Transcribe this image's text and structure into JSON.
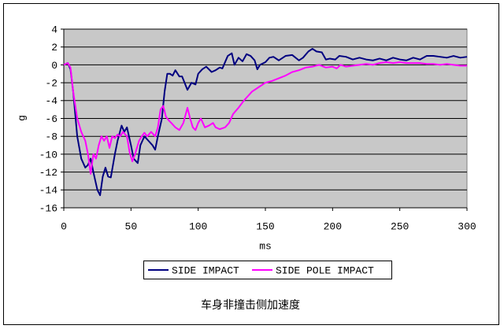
{
  "chart_data": {
    "type": "line",
    "title": "车身非撞击侧加速度",
    "x_label": "ms",
    "y_label": "g",
    "xlim": [
      0,
      300
    ],
    "ylim": [
      -16,
      4
    ],
    "xticks": [
      0,
      50,
      100,
      150,
      200,
      250,
      300
    ],
    "yticks": [
      -16,
      -14,
      -12,
      -10,
      -8,
      -6,
      -4,
      -2,
      0,
      2,
      4
    ],
    "grid": true,
    "legend": "bottom",
    "series": [
      {
        "name": "SIDE IMPACT",
        "color": "#000080",
        "x": [
          0,
          3,
          5,
          7,
          10,
          13,
          16,
          18,
          20,
          22,
          25,
          27,
          29,
          31,
          33,
          35,
          38,
          40,
          43,
          45,
          47,
          50,
          52,
          55,
          57,
          60,
          63,
          66,
          68,
          70,
          73,
          75,
          77,
          79,
          81,
          83,
          86,
          88,
          92,
          95,
          98,
          100,
          103,
          106,
          110,
          113,
          116,
          118,
          122,
          125,
          127,
          130,
          133,
          136,
          139,
          142,
          144,
          146,
          150,
          153,
          156,
          160,
          165,
          170,
          175,
          178,
          182,
          185,
          188,
          192,
          195,
          198,
          202,
          205,
          210,
          215,
          220,
          225,
          230,
          235,
          240,
          245,
          250,
          255,
          260,
          265,
          270,
          275,
          280,
          285,
          290,
          295,
          300
        ],
        "values": [
          0,
          0.2,
          -0.5,
          -3,
          -8,
          -10.5,
          -11.5,
          -11.2,
          -10.5,
          -12,
          -14,
          -14.6,
          -12.5,
          -11.5,
          -12.5,
          -12.6,
          -10,
          -8.5,
          -6.8,
          -7.5,
          -7,
          -9,
          -10.5,
          -11,
          -9,
          -8,
          -8.5,
          -9,
          -9.5,
          -8,
          -6,
          -3,
          -1,
          -1,
          -1.2,
          -0.6,
          -1.3,
          -1.3,
          -2.8,
          -2,
          -2.2,
          -1,
          -0.5,
          -0.2,
          -0.8,
          -0.6,
          -0.3,
          -0.4,
          1,
          1.3,
          0,
          0.8,
          0.4,
          1.2,
          1,
          0.5,
          -0.5,
          0,
          0.3,
          0.8,
          0.9,
          0.5,
          1,
          1.1,
          0.5,
          0.8,
          1.5,
          1.8,
          1.5,
          1.4,
          0.6,
          0.7,
          0.6,
          1,
          0.9,
          0.6,
          0.8,
          0.6,
          0.5,
          0.7,
          0.5,
          0.8,
          0.6,
          0.5,
          0.8,
          0.6,
          1,
          1,
          0.9,
          0.8,
          1,
          0.8,
          0.9
        ]
      },
      {
        "name": "SIDE POLE IMPACT",
        "color": "#ff00ff",
        "x": [
          0,
          3,
          5,
          7,
          10,
          13,
          16,
          18,
          20,
          22,
          24,
          26,
          28,
          30,
          32,
          34,
          36,
          38,
          40,
          42,
          44,
          47,
          49,
          51,
          53,
          56,
          58,
          60,
          62,
          65,
          68,
          70,
          72,
          74,
          76,
          78,
          80,
          83,
          86,
          89,
          92,
          94,
          96,
          98,
          100,
          102,
          105,
          108,
          111,
          113,
          116,
          120,
          123,
          126,
          130,
          134,
          137,
          140,
          145,
          150,
          155,
          160,
          165,
          170,
          175,
          180,
          185,
          190,
          195,
          200,
          203,
          206,
          210,
          215,
          220,
          225,
          230,
          235,
          240,
          245,
          250,
          255,
          260,
          265,
          270,
          275,
          280,
          285,
          290,
          295,
          300
        ],
        "values": [
          0,
          0.2,
          -0.3,
          -3,
          -6,
          -7.5,
          -8.5,
          -10,
          -12.2,
          -10,
          -10.5,
          -9,
          -8,
          -8.5,
          -8,
          -9.3,
          -8,
          -8.2,
          -7.8,
          -8,
          -7.5,
          -8,
          -9.8,
          -10.8,
          -10,
          -8.5,
          -8,
          -7.6,
          -8,
          -7.5,
          -8,
          -7,
          -5,
          -4.6,
          -5.8,
          -6.2,
          -6.5,
          -7,
          -7.3,
          -6.5,
          -4.8,
          -6,
          -7,
          -7.3,
          -6.5,
          -6,
          -7,
          -6.8,
          -6.5,
          -7,
          -7.2,
          -7,
          -6.5,
          -5.5,
          -4.8,
          -4,
          -3.5,
          -3,
          -2.5,
          -2,
          -1.8,
          -1.5,
          -1.2,
          -0.8,
          -0.6,
          -0.3,
          -0.2,
          0,
          -0.3,
          -0.2,
          -0.4,
          0,
          -0.2,
          -0.1,
          0,
          0.1,
          0,
          0.2,
          0.3,
          0.2,
          0.3,
          0.2,
          0.2,
          0.2,
          0.1,
          0.1,
          0,
          0.1,
          0,
          -0.1,
          -0.1
        ]
      }
    ]
  }
}
